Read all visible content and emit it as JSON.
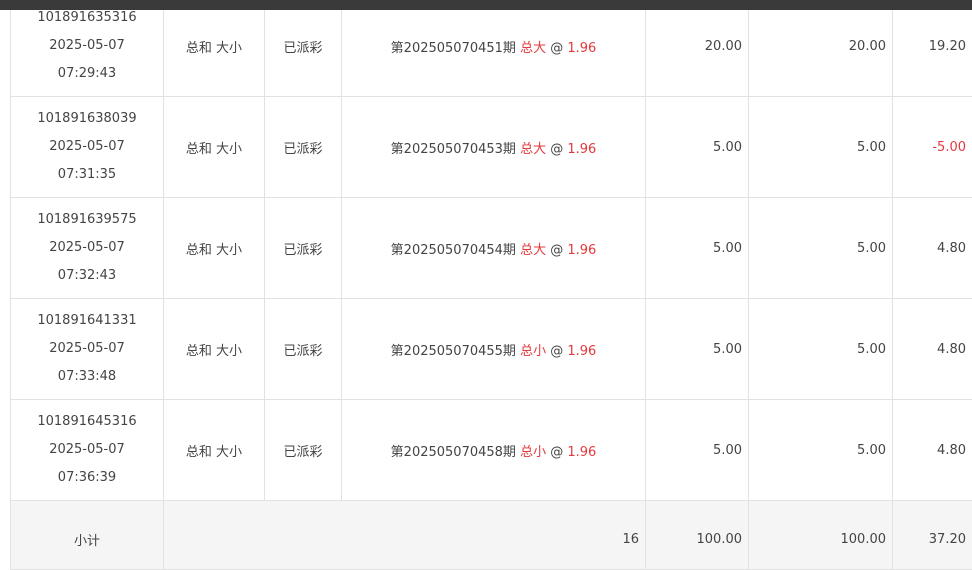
{
  "colors": {
    "red": "#e4393c",
    "topbar": "#3a3a3a"
  },
  "rows": [
    {
      "id": "101891635316",
      "date": "2025-05-07",
      "time": "07:29:43",
      "play": "总和 大小",
      "status": "已派彩",
      "issue": "第202505070451期",
      "pick": "总大",
      "at": "@",
      "odds": "1.96",
      "amount": "20.00",
      "valid": "20.00",
      "result": "19.20",
      "neg": false
    },
    {
      "id": "101891638039",
      "date": "2025-05-07",
      "time": "07:31:35",
      "play": "总和 大小",
      "status": "已派彩",
      "issue": "第202505070453期",
      "pick": "总大",
      "at": "@",
      "odds": "1.96",
      "amount": "5.00",
      "valid": "5.00",
      "result": "-5.00",
      "neg": true
    },
    {
      "id": "101891639575",
      "date": "2025-05-07",
      "time": "07:32:43",
      "play": "总和 大小",
      "status": "已派彩",
      "issue": "第202505070454期",
      "pick": "总大",
      "at": "@",
      "odds": "1.96",
      "amount": "5.00",
      "valid": "5.00",
      "result": "4.80",
      "neg": false
    },
    {
      "id": "101891641331",
      "date": "2025-05-07",
      "time": "07:33:48",
      "play": "总和 大小",
      "status": "已派彩",
      "issue": "第202505070455期",
      "pick": "总小",
      "at": "@",
      "odds": "1.96",
      "amount": "5.00",
      "valid": "5.00",
      "result": "4.80",
      "neg": false
    },
    {
      "id": "101891645316",
      "date": "2025-05-07",
      "time": "07:36:39",
      "play": "总和 大小",
      "status": "已派彩",
      "issue": "第202505070458期",
      "pick": "总小",
      "at": "@",
      "odds": "1.96",
      "amount": "5.00",
      "valid": "5.00",
      "result": "4.80",
      "neg": false
    }
  ],
  "subtotal": {
    "label": "小计",
    "count": "16",
    "amount": "100.00",
    "valid": "100.00",
    "result": "37.20"
  }
}
